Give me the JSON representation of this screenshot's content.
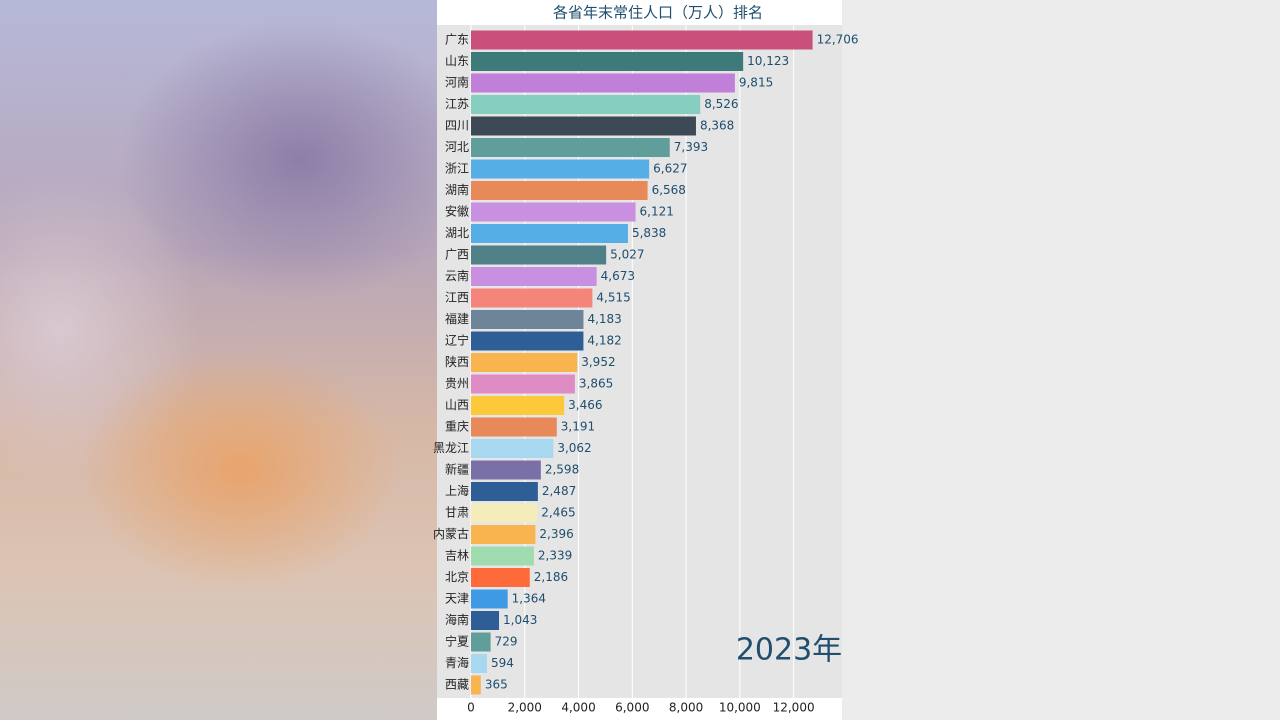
{
  "chart_data": {
    "type": "bar",
    "orientation": "horizontal",
    "title": "各省年末常住人口（万人）排名",
    "year": "2023年",
    "categories": [
      "广东",
      "山东",
      "河南",
      "江苏",
      "四川",
      "河北",
      "浙江",
      "湖南",
      "安徽",
      "湖北",
      "广西",
      "云南",
      "江西",
      "福建",
      "辽宁",
      "陕西",
      "贵州",
      "山西",
      "重庆",
      "黑龙江",
      "新疆",
      "上海",
      "甘肃",
      "内蒙古",
      "吉林",
      "北京",
      "天津",
      "海南",
      "宁夏",
      "青海",
      "西藏"
    ],
    "values": [
      12706,
      10123,
      9815,
      8526,
      8368,
      7393,
      6627,
      6568,
      6121,
      5838,
      5027,
      4673,
      4515,
      4183,
      4182,
      3952,
      3865,
      3466,
      3191,
      3062,
      2598,
      2487,
      2465,
      2396,
      2339,
      2186,
      1364,
      1043,
      729,
      594,
      365
    ],
    "value_labels": [
      "12,706",
      "10,123",
      "9,815",
      "8,526",
      "8,368",
      "7,393",
      "6,627",
      "6,568",
      "6,121",
      "5,838",
      "5,027",
      "4,673",
      "4,515",
      "4,183",
      "4,182",
      "3,952",
      "3,865",
      "3,466",
      "3,191",
      "3,062",
      "2,598",
      "2,487",
      "2,465",
      "2,396",
      "2,339",
      "2,186",
      "1,364",
      "1,043",
      "729",
      "594",
      "365"
    ],
    "colors": [
      "#c8507a",
      "#3f7a7a",
      "#c07fd8",
      "#86cfc0",
      "#3d4a55",
      "#5f9e9a",
      "#55aee6",
      "#e8895a",
      "#c98fe0",
      "#55aee6",
      "#4f8088",
      "#c98fe0",
      "#f5857a",
      "#6e8498",
      "#2d5e96",
      "#f8b44f",
      "#e08cc4",
      "#fcc93a",
      "#e8895a",
      "#a8d8f0",
      "#7a70a8",
      "#2d5e96",
      "#f5ecbb",
      "#f8b44f",
      "#a0dcb0",
      "#ff6a3a",
      "#3f9ae6",
      "#2d5e96",
      "#5f9e9a",
      "#a8d8f0",
      "#f8b44f"
    ],
    "xlim": [
      0,
      13800
    ],
    "xticks": [
      0,
      {
        "value": 2000,
        "label": "2,000"
      },
      {
        "value": 4000,
        "label": "4,000"
      },
      {
        "value": 6000,
        "label": "6,000"
      },
      {
        "value": 8000,
        "label": "8,000"
      },
      {
        "value": 10000,
        "label": "10,000"
      },
      {
        "value": 12000,
        "label": "12,000"
      }
    ],
    "grid": true
  }
}
